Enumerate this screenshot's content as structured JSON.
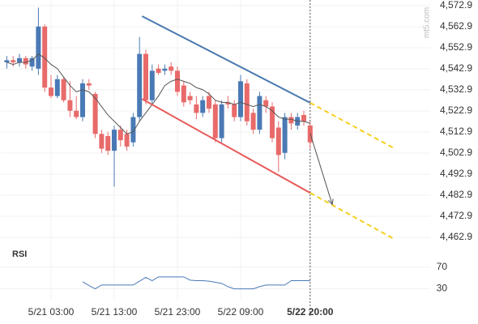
{
  "chart_data": {
    "type": "candlestick",
    "categories": [
      null,
      null,
      null,
      null,
      null,
      null,
      null,
      "5/21 03:00",
      null,
      null,
      null,
      null,
      null,
      null,
      null,
      null,
      null,
      "5/21 13:00",
      null,
      null,
      null,
      null,
      null,
      null,
      null,
      null,
      null,
      "5/21 23:00",
      null,
      null,
      null,
      null,
      null,
      null,
      null,
      null,
      null,
      "5/22 09:00",
      null,
      null,
      null,
      null,
      null,
      null,
      null,
      null,
      null,
      null,
      "5/22 20:00"
    ],
    "open": [
      4546,
      4547,
      4546,
      4548,
      4544,
      4543,
      4563,
      4534,
      4530,
      4538,
      4528,
      4523,
      4520,
      4536,
      4531,
      4512,
      4511,
      4504,
      4514,
      4512,
      4508,
      4520,
      4550,
      4528,
      4543,
      4542,
      4544,
      4542,
      4535,
      4530,
      4526,
      4522,
      4530,
      4526,
      4510,
      4527,
      4526,
      4520,
      4536,
      4522,
      4514,
      4528,
      4525,
      4515,
      4503,
      4520,
      4516,
      4521,
      4516
    ],
    "high": [
      4549,
      4549,
      4550,
      4549,
      4549,
      4572,
      4564,
      4540,
      4540,
      4539,
      4537,
      4530,
      4538,
      4538,
      4532,
      4514,
      4513,
      4516,
      4516,
      4514,
      4522,
      4558,
      4552,
      4545,
      4545,
      4545,
      4546,
      4544,
      4537,
      4532,
      4530,
      4530,
      4532,
      4528,
      4528,
      4530,
      4528,
      4540,
      4538,
      4524,
      4532,
      4530,
      4527,
      4518,
      4522,
      4522,
      4522,
      4523,
      4518
    ],
    "low": [
      4543,
      4544,
      4544,
      4543,
      4542,
      4540,
      4532,
      4529,
      4529,
      4527,
      4520,
      4519,
      4518,
      4533,
      4510,
      4503,
      4502,
      4487,
      4506,
      4504,
      4506,
      4518,
      4526,
      4526,
      4540,
      4540,
      4540,
      4530,
      4525,
      4526,
      4519,
      4520,
      4522,
      4508,
      4508,
      4524,
      4518,
      4518,
      4516,
      4512,
      4512,
      4522,
      4508,
      4494,
      4500,
      4514,
      4514,
      4516,
      4505
    ],
    "close": [
      4547,
      4546,
      4548,
      4545,
      4548,
      4563,
      4534,
      4530,
      4538,
      4528,
      4523,
      4520,
      4536,
      4535,
      4512,
      4505,
      4504,
      4514,
      4509,
      4506,
      4520,
      4550,
      4528,
      4542,
      4541,
      4543,
      4542,
      4532,
      4527,
      4528,
      4522,
      4528,
      4524,
      4510,
      4526,
      4526,
      4520,
      4537,
      4518,
      4514,
      4530,
      4525,
      4510,
      4502,
      4520,
      4517,
      4520,
      4518,
      4508
    ],
    "up_color": "#4a7ab5",
    "down_color": "#e86a6a",
    "average": {
      "color": "#555555",
      "values": [
        4546,
        4545,
        4546,
        4546,
        4547,
        4550,
        4548,
        4545,
        4543,
        4539,
        4535,
        4532,
        4533,
        4532,
        4529,
        4525,
        4521,
        4518,
        4515,
        4512,
        4513,
        4518,
        4522,
        4526,
        4530,
        4535,
        4537,
        4538,
        4537,
        4536,
        4534,
        4533,
        4531,
        4528,
        4527,
        4527,
        4526,
        4527,
        4526,
        4525,
        4526,
        4525,
        4523,
        4520,
        4519,
        4519,
        4518,
        4518,
        4517
      ]
    },
    "trendlines": [
      {
        "color": "#4a78b0",
        "x": [
          21.4,
          48
        ],
        "y": [
          4567.9,
          4526.8
        ]
      },
      {
        "color": "#e85a5a",
        "x": [
          21.4,
          48
        ],
        "y": [
          4528.6,
          4484.0
        ]
      },
      {
        "color": "#f5d020",
        "dashed": true,
        "x": [
          48,
          61.3
        ],
        "y": [
          4526.8,
          4505.2
        ]
      },
      {
        "color": "#f5d020",
        "dashed": true,
        "x": [
          48,
          61.3
        ],
        "y": [
          4484.0,
          4462.1
        ]
      }
    ],
    "arrow": {
      "color": "#555555",
      "x": [
        48,
        51.5
      ],
      "y": [
        4512.3,
        4478.5
      ]
    },
    "xlim": [
      -1,
      67
    ],
    "ylim": [
      4460.2,
      4575.6
    ],
    "yticks": [
      {
        "value": 4572.9,
        "label": "4,572.9"
      },
      {
        "value": 4562.9,
        "label": "4,562.9"
      },
      {
        "value": 4552.9,
        "label": "4,552.9"
      },
      {
        "value": 4542.9,
        "label": "4,542.9"
      },
      {
        "value": 4532.9,
        "label": "4,532.9"
      },
      {
        "value": 4522.9,
        "label": "4,522.9"
      },
      {
        "value": 4512.9,
        "label": "4,512.9"
      },
      {
        "value": 4502.9,
        "label": "4,502.9"
      },
      {
        "value": 4492.9,
        "label": "4,492.9"
      },
      {
        "value": 4482.9,
        "label": "4,482.9"
      },
      {
        "value": 4472.9,
        "label": "4,472.9"
      },
      {
        "value": 4462.9,
        "label": "4,462.9"
      }
    ],
    "rsi": {
      "title": "RSI",
      "color": "#4a7ab5",
      "values": [
        null,
        null,
        null,
        null,
        null,
        null,
        null,
        null,
        null,
        null,
        null,
        null,
        43,
        36,
        30,
        37,
        37,
        37,
        37,
        37,
        37,
        44,
        51,
        45,
        52,
        52,
        52,
        52,
        52,
        46,
        45,
        45,
        44,
        42,
        40,
        34,
        30,
        30,
        30,
        30,
        34,
        37,
        37,
        37,
        37,
        45,
        45,
        45,
        45
      ],
      "ylim": [
        10,
        100
      ],
      "yticks": [
        70,
        30
      ]
    },
    "watermark": "mt5.com"
  }
}
